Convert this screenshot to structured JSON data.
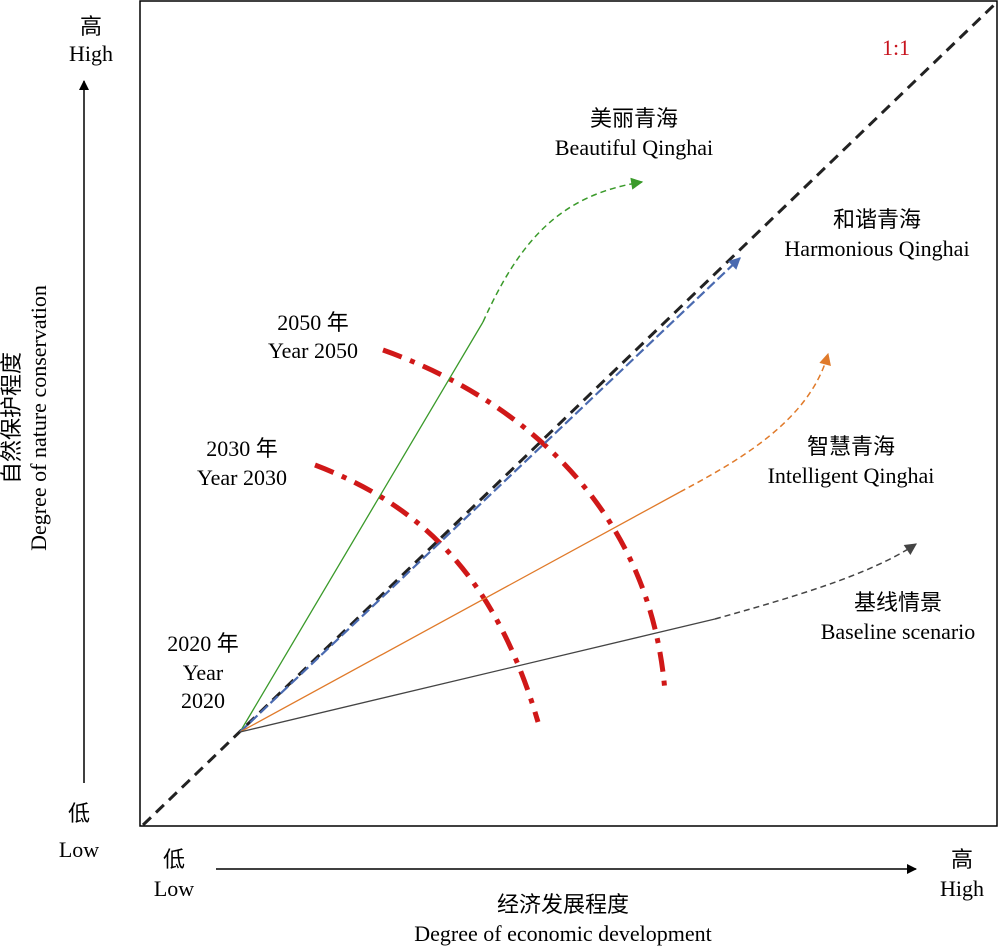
{
  "y_axis": {
    "high_cn": "高",
    "high_en": "High",
    "low_cn": "低",
    "low_en": "Low",
    "title_cn": "自然保护程度",
    "title_en": "Degree of nature conservation"
  },
  "x_axis": {
    "low_cn": "低",
    "low_en": "Low",
    "high_cn": "高",
    "high_en": "High",
    "title_cn": "经济发展程度",
    "title_en": "Degree of economic development"
  },
  "ratio_label": "1:1",
  "years": {
    "y2020_cn": "2020 年",
    "y2020_en_1": "Year",
    "y2020_en_2": "2020",
    "y2030_cn": "2030 年",
    "y2030_en": "Year 2030",
    "y2050_cn": "2050 年",
    "y2050_en": "Year 2050"
  },
  "scenarios": [
    {
      "key": "beautiful",
      "cn": "美丽青海",
      "en": "Beautiful Qinghai",
      "color": "#3a9a2a"
    },
    {
      "key": "harmonious",
      "cn": "和谐青海",
      "en": "Harmonious Qinghai",
      "color": "#4a6ab0"
    },
    {
      "key": "intelligent",
      "cn": "智慧青海",
      "en": "Intelligent Qinghai",
      "color": "#e07a2a"
    },
    {
      "key": "baseline",
      "cn": "基线情景",
      "en": "Baseline scenario",
      "color": "#444444"
    }
  ],
  "colors": {
    "year_arc": "#d01818",
    "ratio_label": "#c8141e",
    "diagonal": "#222222"
  }
}
